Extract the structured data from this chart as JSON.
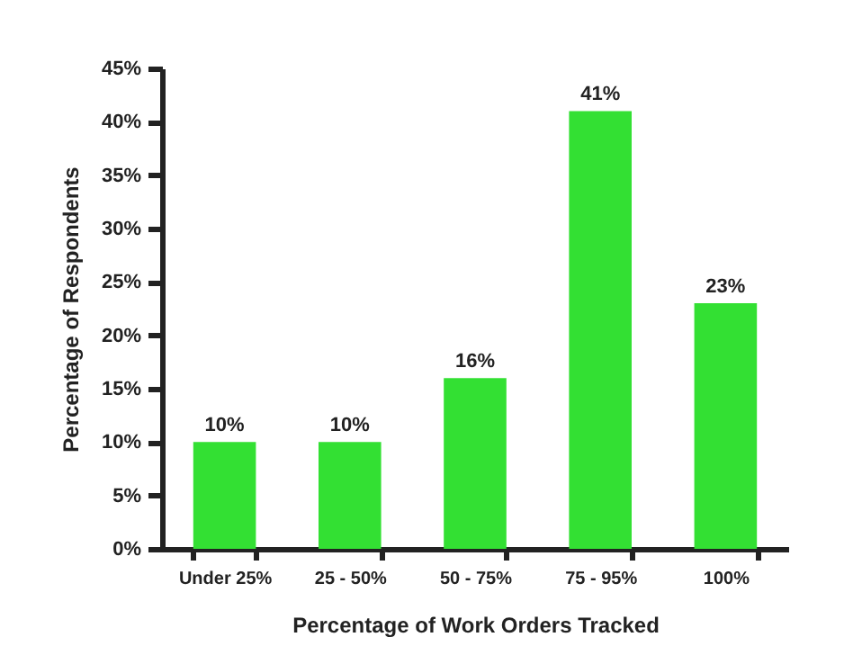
{
  "chart_data": {
    "type": "bar",
    "xlabel": "Percentage of Work Orders Tracked",
    "ylabel": "Percentage of Respondents",
    "categories": [
      "Under 25%",
      "25 - 50%",
      "50 - 75%",
      "75 - 95%",
      "100%"
    ],
    "values": [
      10,
      10,
      16,
      41,
      23
    ],
    "color": "#33e033",
    "value_labels": [
      "10%",
      "10%",
      "16%",
      "41%",
      "23%"
    ],
    "ylim": [
      0,
      45
    ],
    "yticks": [
      {
        "value": 0,
        "label": "0%"
      },
      {
        "value": 5,
        "label": "5%"
      },
      {
        "value": 10,
        "label": "10%"
      },
      {
        "value": 15,
        "label": "15%"
      },
      {
        "value": 20,
        "label": "20%"
      },
      {
        "value": 25,
        "label": "25%"
      },
      {
        "value": 30,
        "label": "30%"
      },
      {
        "value": 35,
        "label": "35%"
      },
      {
        "value": 40,
        "label": "40%"
      },
      {
        "value": 45,
        "label": "45%"
      }
    ],
    "grid": false
  }
}
